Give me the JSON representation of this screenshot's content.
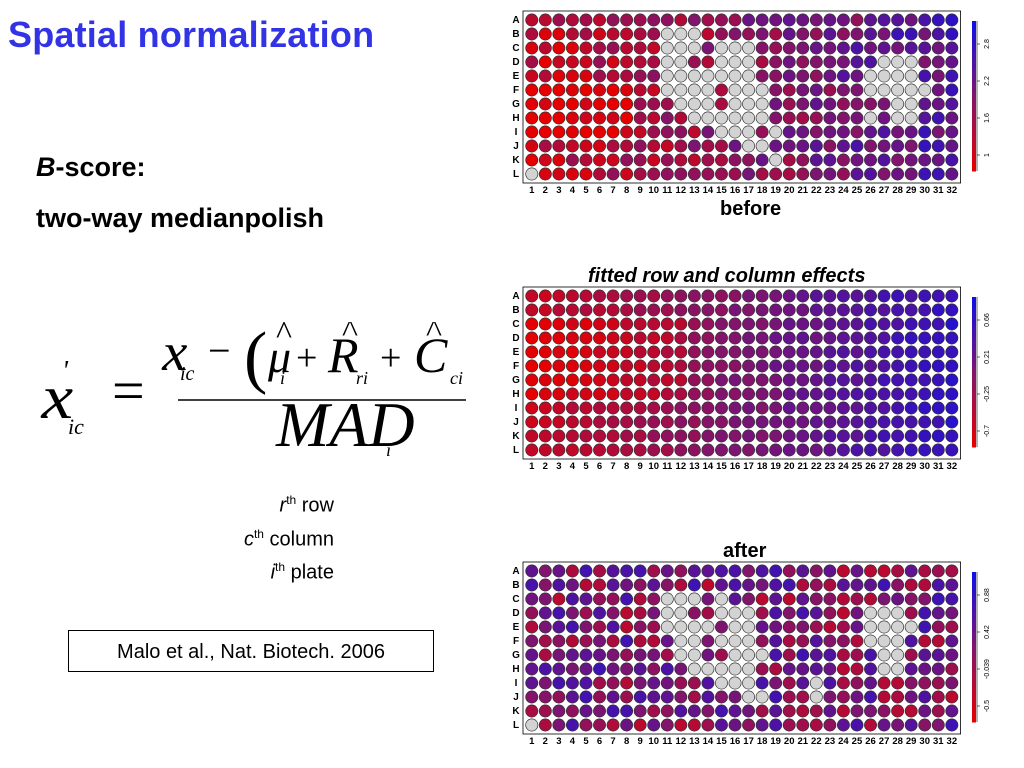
{
  "slide": {
    "title": "Spatial normalization",
    "bscore_letter": "B",
    "bscore_rest": "-score:",
    "medianpolish": "two-way medianpolish",
    "legend": [
      {
        "sym": "r",
        "sup": "th",
        "text": " row"
      },
      {
        "sym": "c",
        "sup": "th",
        "text": " column"
      },
      {
        "sym": "i",
        "sup": "th",
        "text": " plate"
      }
    ],
    "citation": "Malo et al., Nat. Biotech. 2006"
  },
  "plates": [
    {
      "label": "before",
      "label_italic": false,
      "rows": [
        "A",
        "B",
        "C",
        "D",
        "E",
        "F",
        "G",
        "H",
        "I",
        "J",
        "K",
        "L"
      ],
      "cols": [
        "1",
        "2",
        "3",
        "4",
        "5",
        "6",
        "7",
        "8",
        "9",
        "10",
        "11",
        "12",
        "13",
        "14",
        "15",
        "16",
        "17",
        "18",
        "19",
        "20",
        "21",
        "22",
        "23",
        "24",
        "25",
        "26",
        "27",
        "28",
        "29",
        "30",
        "31",
        "32"
      ],
      "scale_ticks": [
        "1",
        "1.6",
        "2.2",
        "2.8"
      ],
      "blank_pattern": "before",
      "colors": {
        "low": "#e60000",
        "high": "#1010e6",
        "blank": "#d3d3d3"
      }
    },
    {
      "label": "fitted row and column effects",
      "label_italic": true,
      "rows": [
        "A",
        "B",
        "C",
        "D",
        "E",
        "F",
        "G",
        "H",
        "I",
        "J",
        "K",
        "L"
      ],
      "cols": [
        "1",
        "2",
        "3",
        "4",
        "5",
        "6",
        "7",
        "8",
        "9",
        "10",
        "11",
        "12",
        "13",
        "14",
        "15",
        "16",
        "17",
        "18",
        "19",
        "20",
        "21",
        "22",
        "23",
        "24",
        "25",
        "26",
        "27",
        "28",
        "29",
        "30",
        "31",
        "32"
      ],
      "scale_ticks": [
        "-0.7",
        "-0.25",
        "0.21",
        "0.66"
      ],
      "blank_pattern": "none",
      "colors": {
        "low": "#e60000",
        "high": "#1010e6",
        "blank": "#d3d3d3"
      }
    },
    {
      "label": "after",
      "label_italic": false,
      "rows": [
        "A",
        "B",
        "C",
        "D",
        "E",
        "F",
        "G",
        "H",
        "I",
        "J",
        "K",
        "L"
      ],
      "cols": [
        "1",
        "2",
        "3",
        "4",
        "5",
        "6",
        "7",
        "8",
        "9",
        "10",
        "11",
        "12",
        "13",
        "14",
        "15",
        "16",
        "17",
        "18",
        "19",
        "20",
        "21",
        "22",
        "23",
        "24",
        "25",
        "26",
        "27",
        "28",
        "29",
        "30",
        "31",
        "32"
      ],
      "scale_ticks": [
        "-0.5",
        "-0.039",
        "0.42",
        "0.88"
      ],
      "blank_pattern": "after",
      "colors": {
        "low": "#e60000",
        "high": "#1010e6",
        "blank": "#d3d3d3"
      }
    }
  ]
}
